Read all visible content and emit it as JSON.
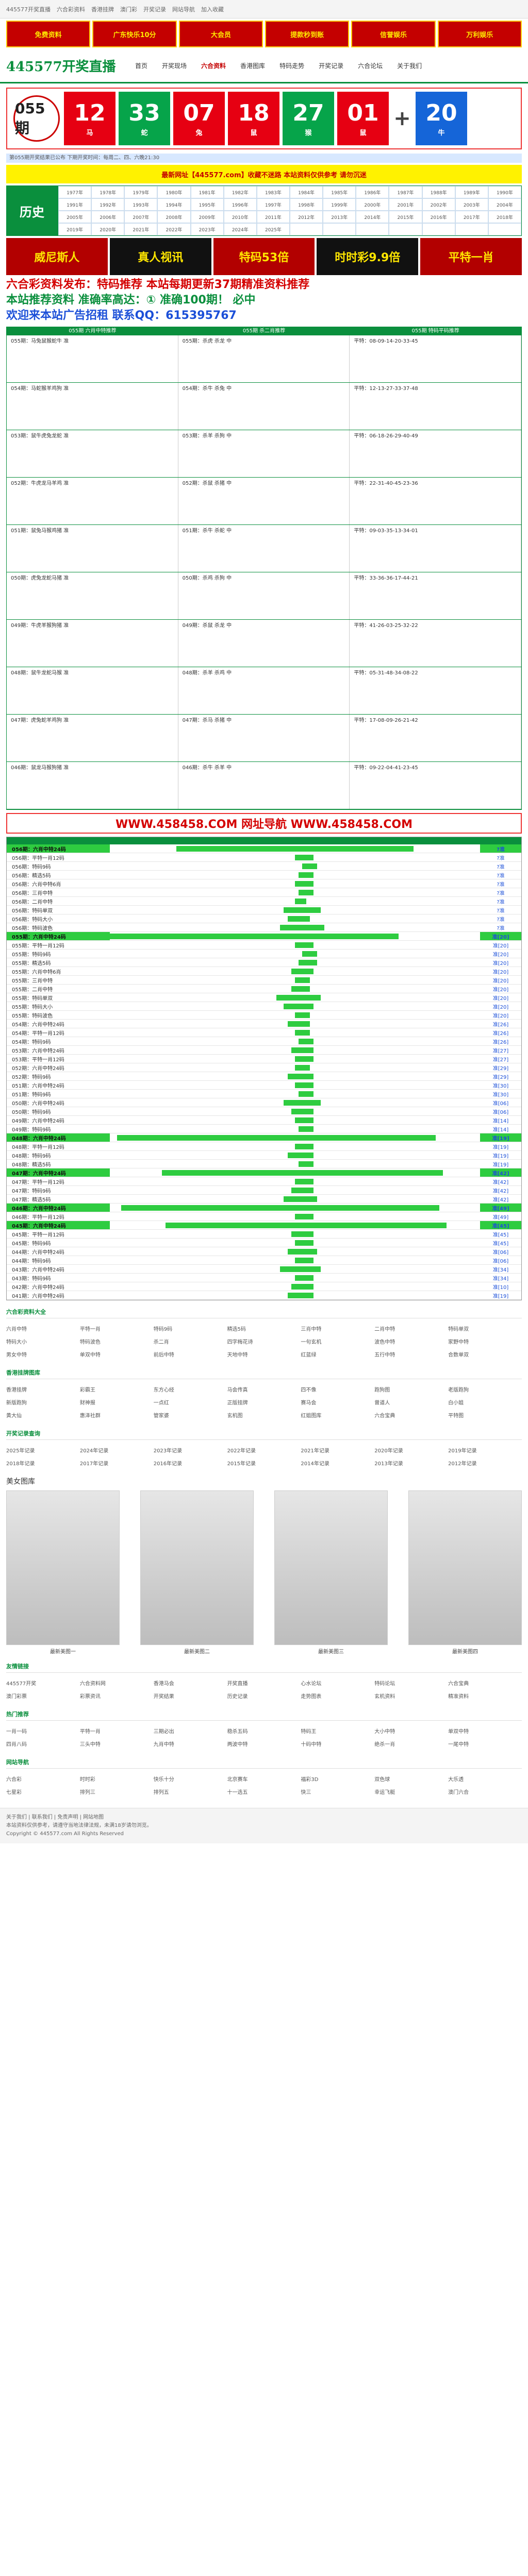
{
  "topbar": {
    "links": [
      "445577开奖直播",
      "六合彩资料",
      "香港挂牌",
      "澳门彩",
      "开奖记录",
      "网站导航",
      "加入收藏"
    ]
  },
  "ad_banner": {
    "cells": [
      "免费资料",
      "广东快乐10分",
      "大会员",
      "提款秒到账",
      "信誉娱乐",
      "万利娱乐"
    ]
  },
  "header": {
    "logo": "445577开奖直播",
    "nav": [
      "首页",
      "开奖现场",
      "六合资料",
      "香港图库",
      "特码走势",
      "开奖记录",
      "六合论坛",
      "关于我们"
    ],
    "active_index": 2
  },
  "draw": {
    "period": "055期",
    "balls": [
      {
        "num": "12",
        "zodiac": "马",
        "color": "red"
      },
      {
        "num": "33",
        "zodiac": "蛇",
        "color": "green"
      },
      {
        "num": "07",
        "zodiac": "兔",
        "color": "red"
      },
      {
        "num": "18",
        "zodiac": "鼠",
        "color": "red"
      },
      {
        "num": "27",
        "zodiac": "猴",
        "color": "green"
      },
      {
        "num": "01",
        "zodiac": "鼠",
        "color": "red"
      }
    ],
    "special": {
      "num": "20",
      "zodiac": "牛",
      "color": "blue"
    }
  },
  "notice": "第055期开奖结果已公布 下期开奖时间：每周二、四、六晚21:30",
  "marquee": "最新网址【445577.com】收藏不迷路 本站资料仅供参考 请勿沉迷",
  "history": {
    "head": "历史",
    "cells": [
      "1977年",
      "1978年",
      "1979年",
      "1980年",
      "1981年",
      "1982年",
      "1983年",
      "1984年",
      "1985年",
      "1986年",
      "1987年",
      "1988年",
      "1989年",
      "1990年",
      "1991年",
      "1992年",
      "1993年",
      "1994年",
      "1995年",
      "1996年",
      "1997年",
      "1998年",
      "1999年",
      "2000年",
      "2001年",
      "2002年",
      "2003年",
      "2004年",
      "2005年",
      "2006年",
      "2007年",
      "2008年",
      "2009年",
      "2010年",
      "2011年",
      "2012年",
      "2013年",
      "2014年",
      "2015年",
      "2016年",
      "2017年",
      "2018年",
      "2019年",
      "2020年",
      "2021年",
      "2022年",
      "2023年",
      "2024年",
      "2025年",
      "",
      "",
      "",
      "",
      "",
      "",
      ""
    ]
  },
  "promo": {
    "cells": [
      "威尼斯人",
      "真人视讯",
      "特码53倍",
      "时时彩9.9倍",
      "平特一肖"
    ]
  },
  "promo_text": {
    "line1": "六合彩资料发布：特码推荐 本站每期更新37期精准资料推荐",
    "line2": "本站推荐资料 准确率高达：① 准确100期！ 必中",
    "line3": "欢迎来本站广告招租 联系QQ：615395767"
  },
  "tips": {
    "headers": [
      "055期 六肖中特推荐",
      "055期 杀二肖推荐",
      "055期 特码平码推荐"
    ],
    "rows": [
      [
        "055期：马兔鼠猴蛇牛 准",
        "055期：杀虎 杀龙 中",
        "平特：08-09-14-20-33-45"
      ],
      [
        "054期：马蛇猴羊鸡狗 准",
        "054期：杀牛 杀兔 中",
        "平特：12-13-27-33-37-48"
      ],
      [
        "053期：鼠牛虎兔龙蛇 准",
        "053期：杀羊 杀狗 中",
        "平特：06-18-26-29-40-49"
      ],
      [
        "052期：牛虎龙马羊鸡 准",
        "052期：杀鼠 杀猪 中",
        "平特：22-31-40-45-23-36"
      ],
      [
        "051期：鼠兔马猴鸡猪 准",
        "051期：杀牛 杀蛇 中",
        "平特：09-03-35-13-34-01"
      ],
      [
        "050期：虎兔龙蛇马猪 准",
        "050期：杀鸡 杀狗 中",
        "平特：33-36-36-17-44-21"
      ],
      [
        "049期：牛虎羊猴狗猪 准",
        "049期：杀鼠 杀龙 中",
        "平特：41-26-03-25-32-22"
      ],
      [
        "048期：鼠牛龙蛇马猴 准",
        "048期：杀羊 杀鸡 中",
        "平特：05-31-48-34-08-22"
      ],
      [
        "047期：虎兔蛇羊鸡狗 准",
        "047期：杀马 杀猪 中",
        "平特：17-08-09-26-21-42"
      ],
      [
        "046期：鼠龙马猴狗猪 准",
        "046期：杀牛 杀羊 中",
        "平特：09-22-04-41-23-45"
      ]
    ]
  },
  "site_banner": "WWW.458458.COM 网址导航 WWW.458458.COM",
  "trend": {
    "rows": [
      {
        "label": "056期：六肖中特24码",
        "result": "?准",
        "start": 0.18,
        "width": 0.64,
        "head": true
      },
      {
        "label": "056期：平特一肖12码",
        "result": "?准",
        "start": 0.5,
        "width": 0.05
      },
      {
        "label": "056期：特码9码",
        "result": "?准",
        "start": 0.52,
        "width": 0.04
      },
      {
        "label": "056期：精选5码",
        "result": "?准",
        "start": 0.51,
        "width": 0.04
      },
      {
        "label": "056期：六肖中特6肖",
        "result": "?准",
        "start": 0.5,
        "width": 0.05
      },
      {
        "label": "056期：三肖中特",
        "result": "?准",
        "start": 0.51,
        "width": 0.04
      },
      {
        "label": "056期：二肖中特",
        "result": "?准",
        "start": 0.5,
        "width": 0.03
      },
      {
        "label": "056期：特码单双",
        "result": "?准",
        "start": 0.47,
        "width": 0.1
      },
      {
        "label": "056期：特码大小",
        "result": "?准",
        "start": 0.48,
        "width": 0.06
      },
      {
        "label": "056期：特码波色",
        "result": "?准",
        "start": 0.46,
        "width": 0.12
      },
      {
        "label": "055期：六肖中特24码",
        "result": "准[20]",
        "start": 0.0,
        "width": 0.78,
        "head": true
      },
      {
        "label": "055期：平特一肖12码",
        "result": "准[20]",
        "start": 0.5,
        "width": 0.05
      },
      {
        "label": "055期：特码9码",
        "result": "准[20]",
        "start": 0.52,
        "width": 0.04
      },
      {
        "label": "055期：精选5码",
        "result": "准[20]",
        "start": 0.51,
        "width": 0.05
      },
      {
        "label": "055期：六肖中特6肖",
        "result": "准[20]",
        "start": 0.49,
        "width": 0.06
      },
      {
        "label": "055期：三肖中特",
        "result": "准[20]",
        "start": 0.5,
        "width": 0.04
      },
      {
        "label": "055期：二肖中特",
        "result": "准[20]",
        "start": 0.49,
        "width": 0.05
      },
      {
        "label": "055期：特码单双",
        "result": "准[20]",
        "start": 0.45,
        "width": 0.12
      },
      {
        "label": "055期：特码大小",
        "result": "准[20]",
        "start": 0.47,
        "width": 0.08
      },
      {
        "label": "055期：特码波色",
        "result": "准[20]",
        "start": 0.5,
        "width": 0.04
      },
      {
        "label": "054期：六肖中特24码",
        "result": "准[26]",
        "start": 0.48,
        "width": 0.06
      },
      {
        "label": "054期：平特一肖12码",
        "result": "准[26]",
        "start": 0.5,
        "width": 0.04
      },
      {
        "label": "054期：特码9码",
        "result": "准[26]",
        "start": 0.51,
        "width": 0.04
      },
      {
        "label": "053期：六肖中特24码",
        "result": "准[27]",
        "start": 0.49,
        "width": 0.06
      },
      {
        "label": "053期：平特一肖12码",
        "result": "准[27]",
        "start": 0.5,
        "width": 0.05
      },
      {
        "label": "052期：六肖中特24码",
        "result": "准[29]",
        "start": 0.5,
        "width": 0.04
      },
      {
        "label": "052期：特码9码",
        "result": "准[29]",
        "start": 0.48,
        "width": 0.07
      },
      {
        "label": "051期：六肖中特24码",
        "result": "准[30]",
        "start": 0.5,
        "width": 0.05
      },
      {
        "label": "051期：特码9码",
        "result": "准[30]",
        "start": 0.51,
        "width": 0.04
      },
      {
        "label": "050期：六肖中特24码",
        "result": "准[06]",
        "start": 0.47,
        "width": 0.1
      },
      {
        "label": "050期：特码9码",
        "result": "准[06]",
        "start": 0.49,
        "width": 0.06
      },
      {
        "label": "049期：六肖中特24码",
        "result": "准[14]",
        "start": 0.5,
        "width": 0.05
      },
      {
        "label": "049期：特码9码",
        "result": "准[14]",
        "start": 0.51,
        "width": 0.04
      },
      {
        "label": "048期：六肖中特24码",
        "result": "准[19]",
        "start": 0.02,
        "width": 0.86,
        "head": true
      },
      {
        "label": "048期：平特一肖12码",
        "result": "准[19]",
        "start": 0.5,
        "width": 0.05
      },
      {
        "label": "048期：特码9码",
        "result": "准[19]",
        "start": 0.48,
        "width": 0.07
      },
      {
        "label": "048期：精选5码",
        "result": "准[19]",
        "start": 0.51,
        "width": 0.04
      },
      {
        "label": "047期：六肖中特24码",
        "result": "准[42]",
        "start": 0.14,
        "width": 0.76,
        "head": true
      },
      {
        "label": "047期：平特一肖12码",
        "result": "准[42]",
        "start": 0.5,
        "width": 0.05
      },
      {
        "label": "047期：特码9码",
        "result": "准[42]",
        "start": 0.49,
        "width": 0.06
      },
      {
        "label": "047期：精选5码",
        "result": "准[42]",
        "start": 0.47,
        "width": 0.09
      },
      {
        "label": "046期：六肖中特24码",
        "result": "准[49]",
        "start": 0.03,
        "width": 0.86,
        "head": true
      },
      {
        "label": "046期：平特一肖12码",
        "result": "准[49]",
        "start": 0.5,
        "width": 0.05
      },
      {
        "label": "045期：六肖中特24码",
        "result": "准[45]",
        "start": 0.15,
        "width": 0.76,
        "head": true
      },
      {
        "label": "045期：平特一肖12码",
        "result": "准[45]",
        "start": 0.49,
        "width": 0.06
      },
      {
        "label": "045期：特码9码",
        "result": "准[45]",
        "start": 0.5,
        "width": 0.05
      },
      {
        "label": "044期：六肖中特24码",
        "result": "准[06]",
        "start": 0.48,
        "width": 0.08
      },
      {
        "label": "044期：特码9码",
        "result": "准[06]",
        "start": 0.5,
        "width": 0.05
      },
      {
        "label": "043期：六肖中特24码",
        "result": "准[34]",
        "start": 0.46,
        "width": 0.11
      },
      {
        "label": "043期：特码9码",
        "result": "准[34]",
        "start": 0.5,
        "width": 0.05
      },
      {
        "label": "042期：六肖中特24码",
        "result": "准[10]",
        "start": 0.49,
        "width": 0.06
      },
      {
        "label": "041期：六肖中特24码",
        "result": "准[19]",
        "start": 0.48,
        "width": 0.07
      }
    ]
  },
  "sections": [
    {
      "title": "六合彩资料大全",
      "links": [
        "六肖中特",
        "平特一肖",
        "特码9码",
        "精选5码",
        "三肖中特",
        "二肖中特",
        "特码单双",
        "特码大小",
        "特码波色",
        "杀二肖",
        "四字梅花诗",
        "一句玄机",
        "波色中特",
        "家野中特",
        "男女中特",
        "单双中特",
        "前后中特",
        "天地中特",
        "红蓝绿",
        "五行中特",
        "合数单双"
      ]
    },
    {
      "title": "香港挂牌图库",
      "links": [
        "香港挂牌",
        "彩霸王",
        "东方心经",
        "马会传真",
        "四不像",
        "跑狗图",
        "老版跑狗",
        "新版跑狗",
        "财神报",
        "一点红",
        "正版挂牌",
        "赛马会",
        "曾道人",
        "白小姐",
        "黄大仙",
        "惠泽社群",
        "管家婆",
        "玄机图",
        "红姐图库",
        "六合宝典",
        "平特图"
      ]
    },
    {
      "title": "开奖记录查询",
      "links": [
        "2025年记录",
        "2024年记录",
        "2023年记录",
        "2022年记录",
        "2021年记录",
        "2020年记录",
        "2019年记录",
        "2018年记录",
        "2017年记录",
        "2016年记录",
        "2015年记录",
        "2014年记录",
        "2013年记录",
        "2012年记录"
      ]
    }
  ],
  "gallery": {
    "title": "美女图库",
    "cards": [
      "最新美图一",
      "最新美图二",
      "最新美图三",
      "最新美图四"
    ]
  },
  "bottom_sections": [
    {
      "title": "友情链接",
      "links": [
        "445577开奖",
        "六合资料网",
        "香港马会",
        "开奖直播",
        "心水论坛",
        "特码论坛",
        "六合宝典",
        "澳门彩票",
        "彩票资讯",
        "开奖结果",
        "历史记录",
        "走势图表",
        "玄机资料",
        "精准资料"
      ]
    },
    {
      "title": "热门推荐",
      "links": [
        "一肖一码",
        "平特一肖",
        "三期必出",
        "稳杀五码",
        "特码王",
        "大小中特",
        "单双中特",
        "四肖八码",
        "三头中特",
        "九肖中特",
        "两波中特",
        "十码中特",
        "绝杀一肖",
        "一尾中特"
      ]
    },
    {
      "title": "网站导航",
      "links": [
        "六合彩",
        "时时彩",
        "快乐十分",
        "北京赛车",
        "福彩3D",
        "双色球",
        "大乐透",
        "七星彩",
        "排列三",
        "排列五",
        "十一选五",
        "快三",
        "幸运飞艇",
        "澳门六合"
      ]
    }
  ],
  "footer": {
    "line1": "关于我们 | 联系我们 | 免责声明 | 网站地图",
    "line2": "本站资料仅供参考，请遵守当地法律法规，未满18岁请勿浏览。",
    "line3": "Copyright © 445577.com All Rights Reserved"
  }
}
